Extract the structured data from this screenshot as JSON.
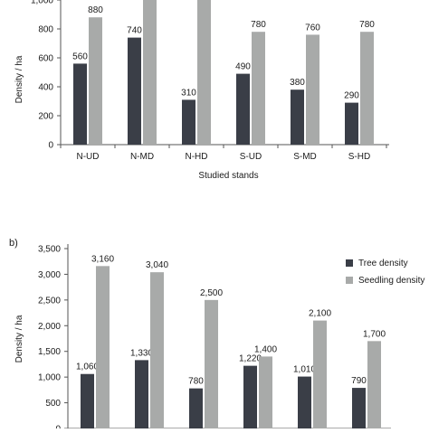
{
  "colors": {
    "tree": "#3a3e47",
    "seedling": "#a8aaa9",
    "axis": "#555555"
  },
  "chart_data": [
    {
      "type": "bar",
      "panel": "",
      "title": "",
      "xlabel": "Studied stands",
      "ylabel": "Density / ha",
      "categories": [
        "N-UD",
        "N-MD",
        "N-HD",
        "S-UD",
        "S-MD",
        "S-HD"
      ],
      "ylim": [
        0,
        1000
      ],
      "yticks": [
        0,
        200,
        400,
        600,
        800,
        1000
      ],
      "ytick_labels": [
        "0",
        "200",
        "400",
        "600",
        "800",
        "1,000"
      ],
      "series": [
        {
          "key": "tree",
          "values": [
            560,
            740,
            310,
            490,
            380,
            290
          ],
          "labels": [
            "560",
            "740",
            "310",
            "490",
            "380",
            "290"
          ]
        },
        {
          "key": "seedling",
          "values": [
            880,
            1000,
            1000,
            780,
            760,
            780
          ],
          "labels": [
            "880",
            "",
            "",
            "780",
            "760",
            "780"
          ]
        }
      ],
      "grid": false
    },
    {
      "type": "bar",
      "panel": "b)",
      "title": "",
      "xlabel": "",
      "ylabel": "Density / ha",
      "categories": [
        "",
        "",
        "",
        "",
        "",
        ""
      ],
      "ylim": [
        0,
        3500
      ],
      "yticks": [
        0,
        500,
        1000,
        1500,
        2000,
        2500,
        3000,
        3500
      ],
      "ytick_labels": [
        "0",
        "500",
        "1,000",
        "1,500",
        "2,000",
        "2,500",
        "3,000",
        "3,500"
      ],
      "series": [
        {
          "key": "tree",
          "name": "Tree density",
          "values": [
            1060,
            1330,
            780,
            1220,
            1010,
            790
          ],
          "labels": [
            "1,060",
            "1,330",
            "780",
            "1,220",
            "1,010",
            "790"
          ]
        },
        {
          "key": "seedling",
          "name": "Seedling density",
          "values": [
            3160,
            3040,
            2500,
            1400,
            2100,
            1700
          ],
          "labels": [
            "3,160",
            "3,040",
            "2,500",
            "1,400",
            "2,100",
            "1,700"
          ]
        }
      ],
      "legend": "top-right",
      "grid": false
    }
  ]
}
